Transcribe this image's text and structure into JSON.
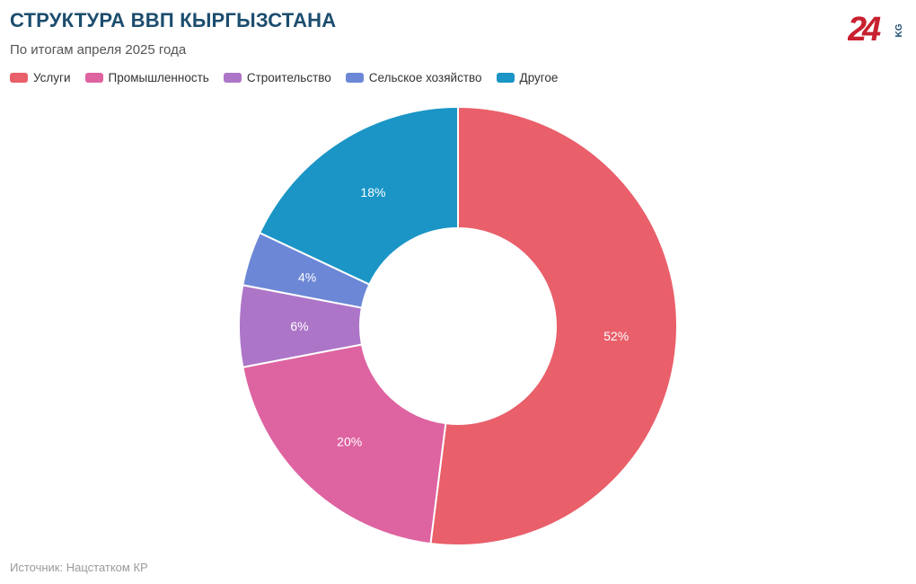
{
  "header": {
    "title": "СТРУКТУРА ВВП КЫРГЫЗСТАНА",
    "subtitle": "По итогам апреля 2025 года"
  },
  "logo": {
    "text": "24",
    "suffix": "KG"
  },
  "footer": {
    "source": "Источник: Нацстатком КР"
  },
  "chart_data": {
    "type": "pie",
    "variant": "donut",
    "title": "СТРУКТУРА ВВП КЫРГЫЗСТАНА",
    "subtitle": "По итогам апреля 2025 года",
    "legend_position": "top-left",
    "categories": [
      "Услуги",
      "Промышленность",
      "Строительство",
      "Сельское хозяйство",
      "Другое"
    ],
    "values": [
      52,
      20,
      6,
      4,
      18
    ],
    "labels": [
      "52%",
      "20%",
      "6%",
      "4%",
      "18%"
    ],
    "colors": [
      "#e95f6a",
      "#de63a1",
      "#ad75c8",
      "#6c87d6",
      "#1a95c6"
    ],
    "unit": "%"
  }
}
